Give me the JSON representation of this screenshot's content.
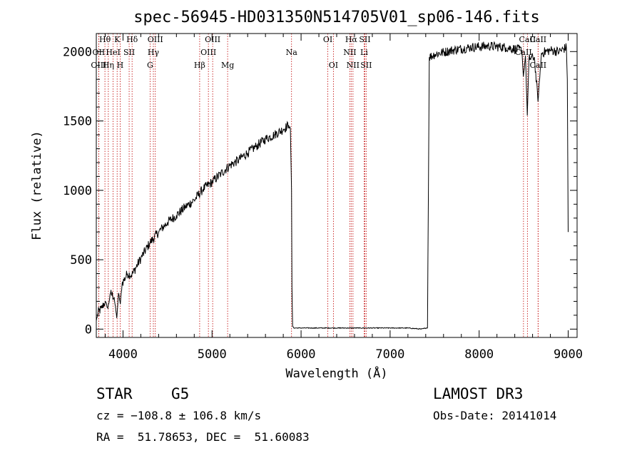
{
  "chart_data": {
    "type": "line",
    "title": "spec-56945-HD031350N514705V01_sp06-146.fits",
    "xlabel": "Wavelength (Å)",
    "ylabel": "Flux (relative)",
    "xlim": [
      3700,
      9100
    ],
    "ylim": [
      -60,
      2130
    ],
    "xticks": [
      4000,
      5000,
      6000,
      7000,
      8000,
      9000
    ],
    "yticks": [
      0,
      500,
      1000,
      1500,
      2000
    ],
    "grid": false,
    "series": [
      {
        "name": "flux",
        "color": "#000000",
        "noise": 35,
        "points": [
          [
            3700,
            60
          ],
          [
            3720,
            120
          ],
          [
            3760,
            150
          ],
          [
            3800,
            200
          ],
          [
            3830,
            150
          ],
          [
            3860,
            260
          ],
          [
            3900,
            230
          ],
          [
            3930,
            80
          ],
          [
            3950,
            260
          ],
          [
            3970,
            180
          ],
          [
            3990,
            330
          ],
          [
            4050,
            400
          ],
          [
            4100,
            390
          ],
          [
            4200,
            510
          ],
          [
            4300,
            620
          ],
          [
            4400,
            700
          ],
          [
            4500,
            770
          ],
          [
            4600,
            820
          ],
          [
            4700,
            880
          ],
          [
            4800,
            930
          ],
          [
            4900,
            1010
          ],
          [
            5000,
            1060
          ],
          [
            5100,
            1120
          ],
          [
            5200,
            1180
          ],
          [
            5300,
            1220
          ],
          [
            5400,
            1270
          ],
          [
            5500,
            1320
          ],
          [
            5600,
            1370
          ],
          [
            5700,
            1400
          ],
          [
            5800,
            1440
          ],
          [
            5860,
            1470
          ],
          [
            5880,
            1440
          ],
          [
            5893,
            1000
          ],
          [
            5898,
            300
          ],
          [
            5905,
            20
          ],
          [
            5920,
            8
          ],
          [
            6500,
            8
          ],
          [
            7000,
            8
          ],
          [
            7200,
            8
          ],
          [
            7350,
            0
          ],
          [
            7420,
            10
          ],
          [
            7430,
            1000
          ],
          [
            7440,
            1960
          ],
          [
            7500,
            1980
          ],
          [
            7700,
            2010
          ],
          [
            7900,
            2030
          ],
          [
            8100,
            2040
          ],
          [
            8300,
            2030
          ],
          [
            8480,
            2010
          ],
          [
            8497,
            1820
          ],
          [
            8520,
            1970
          ],
          [
            8541,
            1540
          ],
          [
            8560,
            1950
          ],
          [
            8620,
            1960
          ],
          [
            8661,
            1640
          ],
          [
            8700,
            1990
          ],
          [
            8800,
            2010
          ],
          [
            8900,
            2000
          ],
          [
            8980,
            2030
          ],
          [
            8990,
            1800
          ],
          [
            9000,
            700
          ]
        ]
      }
    ],
    "spectral_lines": [
      {
        "label": "Hθ",
        "x": 3797,
        "row": 0
      },
      {
        "label": "OII",
        "x": 3727,
        "row": 1
      },
      {
        "label": "OIII",
        "x": 3727,
        "row": 2
      },
      {
        "label": "K",
        "x": 3934,
        "row": 0
      },
      {
        "label": "HeI",
        "x": 3889,
        "row": 1
      },
      {
        "label": "Hη",
        "x": 3835,
        "row": 2
      },
      {
        "label": "SII",
        "x": 4069,
        "row": 1
      },
      {
        "label": "H",
        "x": 3968,
        "row": 2
      },
      {
        "label": "Hδ",
        "x": 4102,
        "row": 0
      },
      {
        "label": "OIII",
        "x": 4363,
        "row": 0
      },
      {
        "label": "Hγ",
        "x": 4341,
        "row": 1
      },
      {
        "label": "G",
        "x": 4304,
        "row": 2
      },
      {
        "label": "Hβ",
        "x": 4861,
        "row": 2
      },
      {
        "label": "OIII",
        "x": 5007,
        "row": 0
      },
      {
        "label": "OIII",
        "x": 4959,
        "row": 1
      },
      {
        "label": "Mg",
        "x": 5175,
        "row": 2
      },
      {
        "label": "Na",
        "x": 5893,
        "row": 1
      },
      {
        "label": "OI",
        "x": 6300,
        "row": 0
      },
      {
        "label": "OI",
        "x": 6363,
        "row": 2
      },
      {
        "label": "Hα",
        "x": 6563,
        "row": 0
      },
      {
        "label": "SII",
        "x": 6716,
        "row": 0
      },
      {
        "label": "NII",
        "x": 6548,
        "row": 1
      },
      {
        "label": "Li",
        "x": 6708,
        "row": 1
      },
      {
        "label": "NII",
        "x": 6583,
        "row": 2
      },
      {
        "label": "SII",
        "x": 6731,
        "row": 2
      },
      {
        "label": "CaII",
        "x": 8498,
        "row": 1
      },
      {
        "label": "CaII",
        "x": 8542,
        "row": 0
      },
      {
        "label": "CaII",
        "x": 8662,
        "row": 0
      },
      {
        "label": "CaII",
        "x": 8662,
        "row": 2
      }
    ]
  },
  "info": {
    "object_type": "STAR",
    "subclass": "G5",
    "survey": "LAMOST DR3",
    "cz": "cz = −108.8 ± 106.8 km/s",
    "obs_date": "Obs-Date: 20141014",
    "coords": "RA =  51.78653, DEC =  51.60083"
  }
}
